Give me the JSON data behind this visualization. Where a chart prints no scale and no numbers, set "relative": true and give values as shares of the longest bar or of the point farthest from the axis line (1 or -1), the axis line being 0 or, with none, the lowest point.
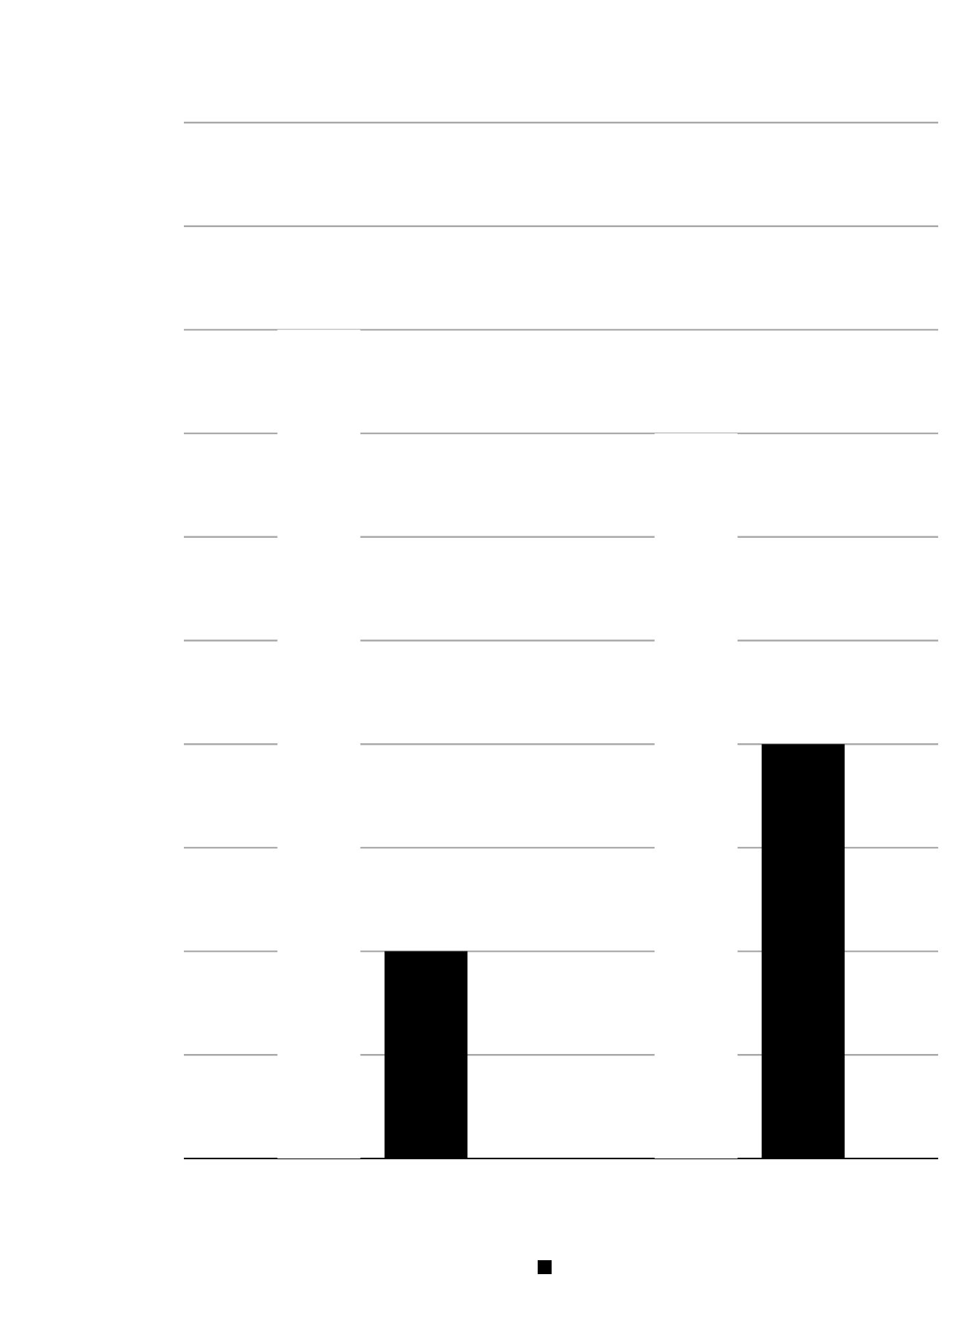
{
  "chart_data": {
    "type": "bar",
    "relative": true,
    "categories": [
      null,
      null
    ],
    "series": [
      {
        "color": "#ffffff",
        "values": [
          1,
          0.875
        ]
      },
      {
        "color": "#000000",
        "values": [
          0.25,
          0.5
        ]
      }
    ],
    "grid": "y"
  }
}
